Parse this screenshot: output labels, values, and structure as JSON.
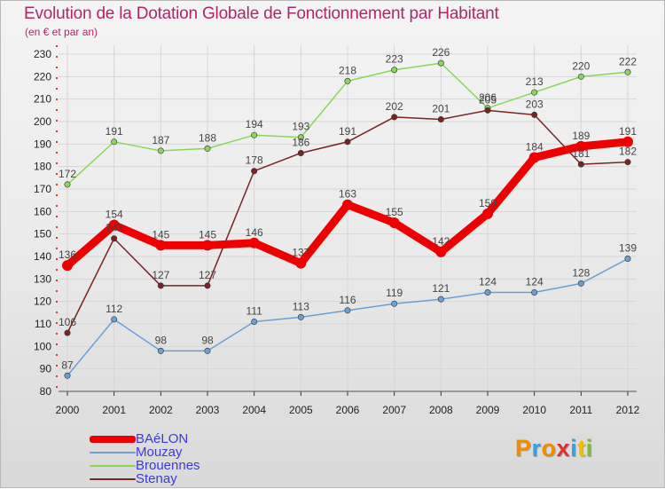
{
  "chart_data": {
    "type": "line",
    "title": "Evolution de la Dotation Globale de Fonctionnement par Habitant",
    "subtitle": "(en € et par an)",
    "xlabel": "",
    "ylabel": "",
    "x": [
      "2000",
      "2001",
      "2002",
      "2003",
      "2004",
      "2005",
      "2006",
      "2007",
      "2008",
      "2009",
      "2010",
      "2011",
      "2012"
    ],
    "ylim": [
      80,
      230
    ],
    "yticks": [
      80,
      90,
      100,
      110,
      120,
      130,
      140,
      150,
      160,
      170,
      180,
      190,
      200,
      210,
      220,
      230
    ],
    "grid": true,
    "legend_position": "bottom-left",
    "series": [
      {
        "name": "BAéLON",
        "color": "#ee0000",
        "values": [
          136,
          154,
          145,
          145,
          146,
          137,
          163,
          155,
          142,
          159,
          184,
          189,
          191
        ]
      },
      {
        "name": "Mouzay",
        "color": "#6aa0d8",
        "values": [
          87,
          112,
          98,
          98,
          111,
          113,
          116,
          119,
          121,
          124,
          124,
          128,
          139
        ]
      },
      {
        "name": "Brouennes",
        "color": "#88d855",
        "values": [
          172,
          191,
          187,
          188,
          194,
          193,
          218,
          223,
          226,
          206,
          213,
          220,
          222
        ]
      },
      {
        "name": "Stenay",
        "color": "#7a2424",
        "values": [
          106,
          148,
          127,
          127,
          178,
          186,
          191,
          202,
          201,
          205,
          203,
          181,
          182
        ]
      }
    ]
  },
  "logo": {
    "text": "Proxiti",
    "colors": [
      "#f08c00",
      "#3aa0e0",
      "#f08c00",
      "#e03030",
      "#3aa0e0",
      "#f0c000",
      "#78c030"
    ]
  }
}
